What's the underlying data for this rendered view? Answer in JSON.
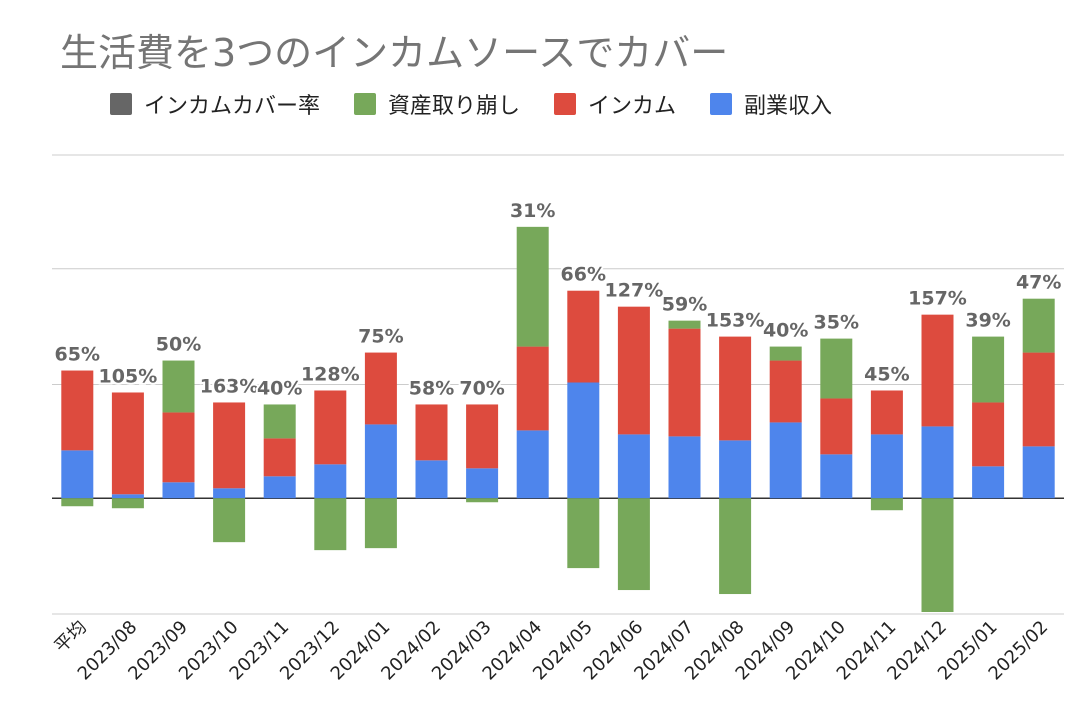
{
  "chart_data": {
    "type": "bar",
    "stacked": true,
    "title": "生活費を3つのインカムソースでカバー",
    "categories": [
      "平均",
      "2023/08",
      "2023/09",
      "2023/10",
      "2023/11",
      "2023/12",
      "2024/01",
      "2024/02",
      "2024/03",
      "2024/04",
      "2024/05",
      "2024/06",
      "2024/07",
      "2024/08",
      "2024/09",
      "2024/10",
      "2024/11",
      "2024/12",
      "2025/01",
      "2025/02"
    ],
    "series": [
      {
        "name": "副業収入",
        "color": "#4e85ec",
        "values": [
          24,
          2,
          8,
          5,
          11,
          17,
          37,
          19,
          15,
          34,
          58,
          32,
          31,
          29,
          38,
          22,
          32,
          36,
          16,
          26
        ]
      },
      {
        "name": "インカム",
        "color": "#dd4b3e",
        "values": [
          40,
          51,
          35,
          43,
          19,
          37,
          36,
          28,
          32,
          42,
          46,
          64,
          54,
          52,
          31,
          28,
          22,
          56,
          32,
          47
        ]
      },
      {
        "name": "資産取り崩し",
        "color": "#77a85a",
        "values": [
          -4,
          -5,
          26,
          -22,
          17,
          -26,
          -25,
          0,
          -2,
          60,
          -35,
          -46,
          4,
          -48,
          7,
          30,
          -6,
          -57,
          33,
          27
        ]
      }
    ],
    "coverage_labels": [
      "65%",
      "105%",
      "50%",
      "163%",
      "40%",
      "128%",
      "75%",
      "58%",
      "70%",
      "31%",
      "66%",
      "127%",
      "59%",
      "153%",
      "40%",
      "35%",
      "45%",
      "157%",
      "39%",
      "47%"
    ],
    "legend": {
      "position": "top",
      "items": [
        {
          "name": "インカムカバー率",
          "color": "#666666"
        },
        {
          "name": "資産取り崩し",
          "color": "#77a85a"
        },
        {
          "name": "インカム",
          "color": "#dd4b3e"
        },
        {
          "name": "副業収入",
          "color": "#4e85ec"
        }
      ]
    },
    "ylim": [
      -58,
      172
    ],
    "y_gridlines": [
      -58,
      0,
      57,
      115,
      172
    ],
    "grid": true,
    "axis_labels_shown": false
  }
}
